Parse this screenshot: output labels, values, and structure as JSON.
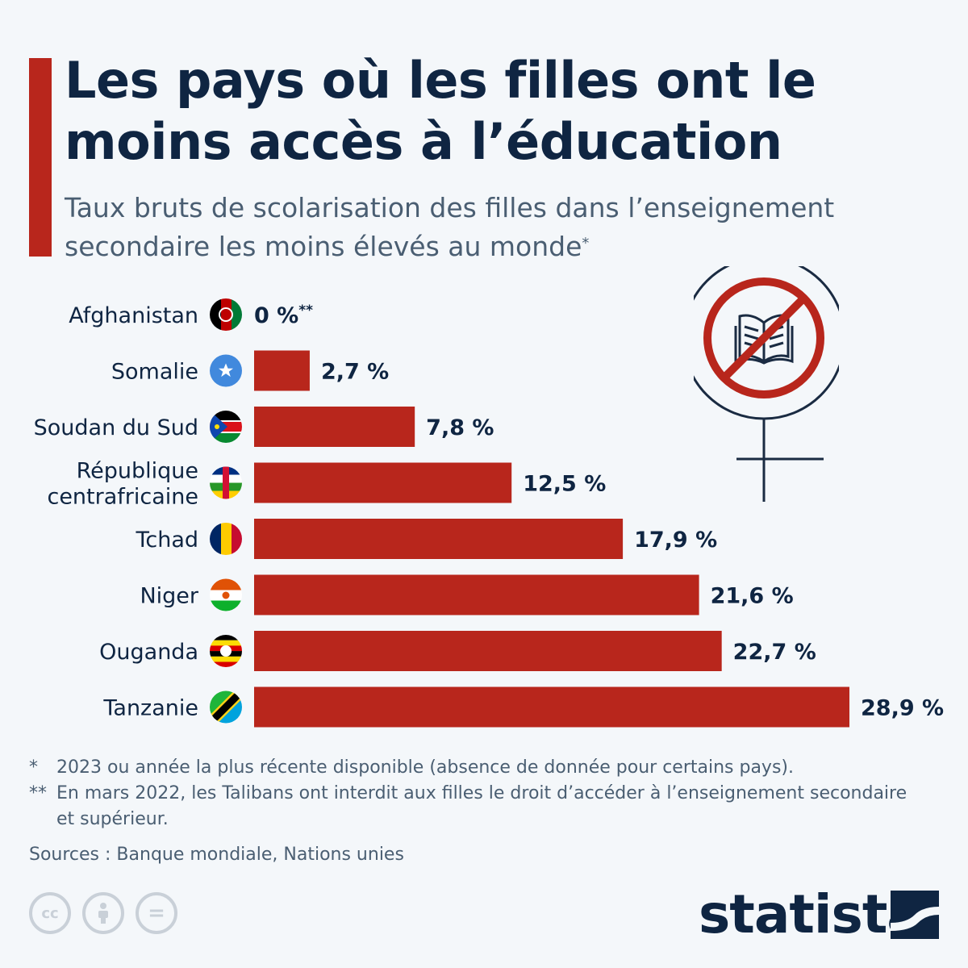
{
  "title": "Les pays où les filles ont le moins accès à l’éducation",
  "subtitle": "Taux bruts de scolarisation des filles dans l’enseignement secondaire les moins élevés au monde",
  "subtitle_mark": "*",
  "colors": {
    "bar": "#b8261c",
    "text": "#0f2542",
    "muted": "#4a5e72",
    "accent": "#b8261c"
  },
  "icons": [
    "no-book-female-symbol-icon",
    "creative-commons-icon",
    "attribution-icon",
    "no-derivatives-icon",
    "statista-logo-icon"
  ],
  "chart_data": {
    "type": "bar",
    "orientation": "horizontal",
    "categories": [
      "Afghanistan",
      "Somalie",
      "Soudan du Sud",
      "République centrafricaine",
      "Tchad",
      "Niger",
      "Ouganda",
      "Tanzanie"
    ],
    "values": [
      0,
      2.7,
      7.8,
      12.5,
      17.9,
      21.6,
      22.7,
      28.9
    ],
    "value_labels": [
      "0 %",
      "2,7 %",
      "7,8 %",
      "12,5 %",
      "17,9 %",
      "21,6 %",
      "22,7 %",
      "28,9 %"
    ],
    "value_label_marks": [
      "**",
      "",
      "",
      "",
      "",
      "",
      "",
      ""
    ],
    "flags": [
      "afghanistan-flag-icon",
      "somalia-flag-icon",
      "south-sudan-flag-icon",
      "central-african-republic-flag-icon",
      "chad-flag-icon",
      "niger-flag-icon",
      "uganda-flag-icon",
      "tanzania-flag-icon"
    ],
    "unit": "%",
    "xlim": [
      0,
      28.9
    ],
    "grid": false,
    "legend": "none"
  },
  "footnotes": [
    {
      "mark": "*",
      "text": "2023 ou année la plus récente disponible (absence de donnée pour certains pays)."
    },
    {
      "mark": "**",
      "text": "En mars 2022, les Talibans ont interdit aux filles le droit d’accéder à l’enseignement secondaire et supérieur."
    }
  ],
  "source": "Sources : Banque mondiale, Nations unies",
  "cc_labels": [
    "cc",
    "="
  ],
  "brand": "statista"
}
